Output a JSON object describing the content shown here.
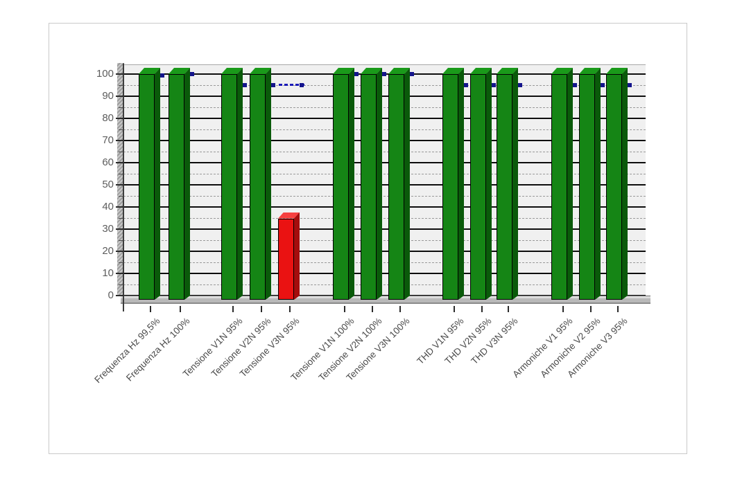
{
  "panel": {
    "background": "#ffffff",
    "border_color": "#c9c9c9"
  },
  "chart_data": {
    "type": "bar",
    "style": "3d-column",
    "title": "",
    "categories": [
      "Frequenza Hz 99,5%",
      "Frequenza Hz 100%",
      "Tensione V1N 95%",
      "Tensione V2N 95%",
      "Tensione V3N 95%",
      "Tensione V1N 100%",
      "Tensione V2N 100%",
      "Tensione V3N 100%",
      "THD V1N 95%",
      "THD V2N 95%",
      "THD V3N 95%",
      "Armoniche V1 95%",
      "Armoniche V2 95%",
      "Armoniche V3 95%"
    ],
    "values": [
      100,
      100,
      100,
      100,
      36,
      100,
      100,
      100,
      100,
      100,
      100,
      100,
      100,
      100
    ],
    "bar_status": [
      "pass",
      "pass",
      "pass",
      "pass",
      "fail",
      "pass",
      "pass",
      "pass",
      "pass",
      "pass",
      "pass",
      "pass",
      "pass",
      "pass"
    ],
    "limit_values": [
      99.5,
      100,
      95,
      95,
      95,
      100,
      100,
      100,
      95,
      95,
      95,
      95,
      95,
      95
    ],
    "ylim": [
      0,
      100
    ],
    "yticks": [
      0,
      10,
      20,
      30,
      40,
      50,
      60,
      70,
      80,
      90,
      100
    ],
    "ytick_minor_step": 5,
    "xlabel": "",
    "ylabel": "",
    "legend": "none",
    "grid": {
      "major": "solid black every 10",
      "minor": "dashed gray every 5"
    },
    "plot_bg": "#f0f0f0",
    "colors": {
      "pass": "#158515",
      "pass_top": "#1a9a1a",
      "pass_side": "#0a5a0a",
      "fail": "#ea1212",
      "fail_top": "#f64040",
      "fail_side": "#a50d0d",
      "limit_marker": "#1a1ab8",
      "limit_nub": "#14148c"
    }
  }
}
